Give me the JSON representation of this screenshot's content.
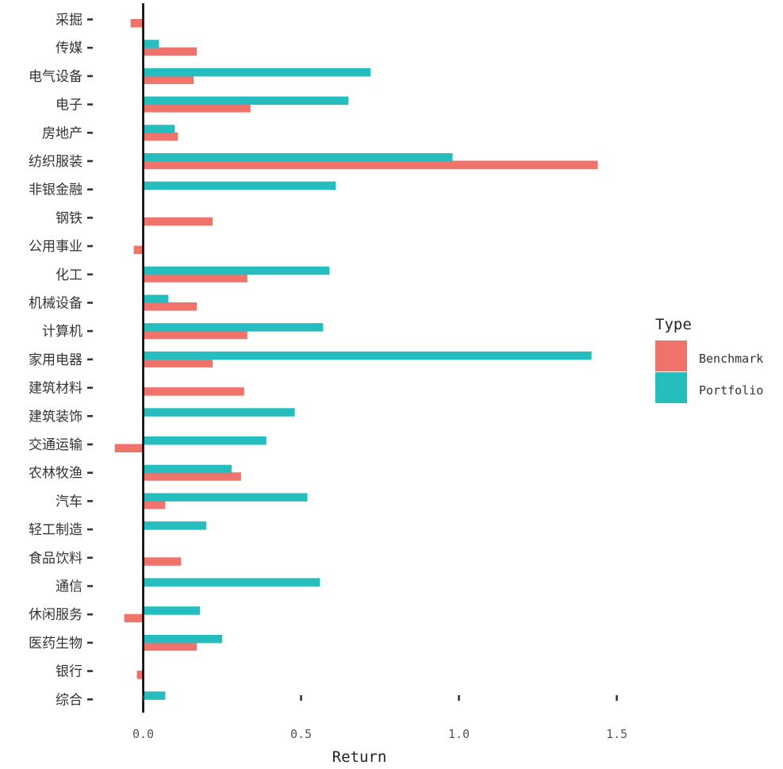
{
  "chart_data": {
    "type": "bar",
    "orientation": "horizontal",
    "categories": [
      "采掘",
      "传媒",
      "电气设备",
      "电子",
      "房地产",
      "纺织服装",
      "非银金融",
      "钢铁",
      "公用事业",
      "化工",
      "机械设备",
      "计算机",
      "家用电器",
      "建筑材料",
      "建筑装饰",
      "交通运输",
      "农林牧渔",
      "汽车",
      "轻工制造",
      "食品饮料",
      "通信",
      "休闲服务",
      "医药生物",
      "银行",
      "综合"
    ],
    "series": [
      {
        "name": "Benchmark",
        "color": "#F0736B",
        "values": [
          -0.04,
          0.17,
          0.16,
          0.34,
          0.11,
          1.44,
          null,
          0.22,
          -0.03,
          0.33,
          0.17,
          0.33,
          0.22,
          0.32,
          null,
          -0.09,
          0.31,
          0.07,
          null,
          0.12,
          null,
          -0.06,
          0.17,
          -0.02,
          null
        ]
      },
      {
        "name": "Portfolio",
        "color": "#26BDBF",
        "values": [
          null,
          0.05,
          0.72,
          0.65,
          0.1,
          0.98,
          0.61,
          null,
          null,
          0.59,
          0.08,
          0.57,
          1.42,
          null,
          0.48,
          0.39,
          0.28,
          0.52,
          0.2,
          null,
          0.56,
          0.18,
          0.25,
          null,
          0.07
        ]
      }
    ],
    "xlabel": "Return",
    "ylabel": "",
    "xlim": [
      -0.15,
      1.55
    ],
    "xticks": [
      0.0,
      0.5,
      1.0,
      1.5
    ],
    "xtick_labels": [
      "0.0",
      "0.5",
      "1.0",
      "1.5"
    ],
    "grid": false,
    "legend": {
      "title": "Type",
      "position": "right",
      "entries": [
        "Benchmark",
        "Portfolio"
      ]
    }
  }
}
